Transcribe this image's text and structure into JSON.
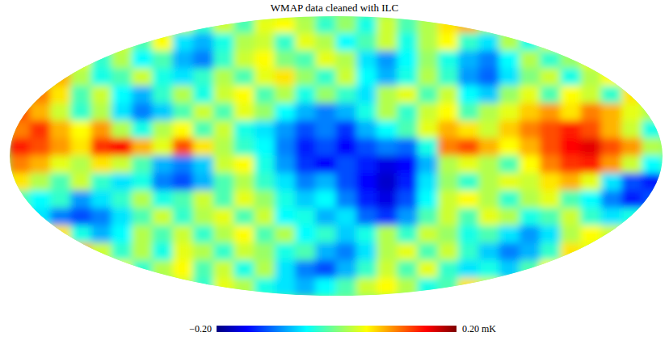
{
  "chart_data": {
    "type": "heatmap",
    "title": "WMAP data cleaned with ILC",
    "colorbar": {
      "range": [
        -0.2,
        0.2
      ],
      "ticks": [
        {
          "value": -0.2,
          "label": "−0.20"
        },
        {
          "value": 0.2,
          "label": "0.20 mK"
        }
      ]
    },
    "cells": [
      [
        null,
        null,
        null,
        null,
        null,
        null,
        null,
        null,
        0.02,
        -0.03,
        0.03,
        -0.02,
        0.04,
        0.05,
        0.02,
        -0.03,
        0.01,
        -0.04,
        0.03,
        -0.02,
        0.02,
        0.06,
        0.08,
        0.01,
        null,
        null,
        null,
        null,
        null,
        null,
        null,
        null
      ],
      [
        null,
        null,
        null,
        null,
        null,
        0.03,
        -0.02,
        0.05,
        -0.06,
        -0.08,
        -0.04,
        0.02,
        0.03,
        -0.03,
        0.04,
        0.02,
        -0.05,
        -0.02,
        0.03,
        -0.04,
        0.02,
        0.05,
        -0.03,
        -0.06,
        0.02,
        -0.04,
        0.03,
        null,
        null,
        null,
        null,
        null
      ],
      [
        null,
        null,
        null,
        0.04,
        -0.03,
        0.02,
        -0.05,
        -0.02,
        -0.08,
        -0.1,
        -0.03,
        0.03,
        0.05,
        0.0,
        -0.02,
        0.04,
        0.02,
        -0.06,
        -0.09,
        -0.05,
        0.01,
        -0.04,
        -0.08,
        -0.1,
        -0.05,
        0.02,
        -0.03,
        0.01,
        0.04,
        null,
        null,
        null
      ],
      [
        null,
        null,
        0.08,
        0.02,
        -0.04,
        -0.02,
        0.03,
        -0.04,
        -0.06,
        -0.03,
        0.02,
        -0.02,
        0.04,
        0.06,
        0.01,
        -0.03,
        0.03,
        -0.05,
        -0.08,
        -0.04,
        0.02,
        -0.03,
        -0.09,
        -0.11,
        -0.06,
        0.0,
        0.03,
        -0.04,
        0.02,
        0.05,
        null,
        null
      ],
      [
        null,
        0.1,
        0.06,
        -0.02,
        0.03,
        -0.05,
        -0.08,
        -0.03,
        0.02,
        -0.04,
        0.03,
        0.05,
        -0.02,
        0.02,
        -0.04,
        0.01,
        -0.03,
        -0.06,
        0.02,
        0.04,
        -0.02,
        0.03,
        -0.05,
        -0.07,
        0.01,
        0.04,
        -0.02,
        0.05,
        0.03,
        -0.03,
        0.06,
        null
      ],
      [
        0.12,
        0.08,
        0.03,
        -0.03,
        0.02,
        -0.06,
        -0.1,
        -0.07,
        -0.02,
        0.03,
        -0.02,
        0.04,
        0.01,
        -0.05,
        -0.08,
        -0.1,
        -0.08,
        -0.04,
        0.02,
        -0.03,
        0.03,
        0.05,
        -0.02,
        0.02,
        0.04,
        0.07,
        0.09,
        0.06,
        0.1,
        0.08,
        0.04,
        0.02
      ],
      [
        0.1,
        0.13,
        0.08,
        0.05,
        0.09,
        0.02,
        -0.04,
        0.02,
        0.05,
        -0.02,
        0.03,
        -0.04,
        -0.06,
        -0.09,
        -0.12,
        -0.1,
        -0.13,
        -0.08,
        -0.05,
        -0.02,
        0.04,
        0.08,
        0.06,
        0.03,
        0.07,
        0.1,
        0.12,
        0.14,
        0.12,
        0.08,
        0.03,
        -0.04
      ],
      [
        0.14,
        0.12,
        0.09,
        0.06,
        0.13,
        0.15,
        0.08,
        0.04,
        0.12,
        0.06,
        0.02,
        -0.03,
        -0.05,
        -0.1,
        -0.14,
        -0.12,
        -0.15,
        -0.12,
        -0.1,
        -0.11,
        -0.04,
        0.1,
        0.12,
        0.08,
        0.05,
        0.08,
        0.12,
        0.15,
        0.16,
        0.12,
        0.09,
        0.02
      ],
      [
        0.1,
        0.08,
        0.04,
        0.02,
        0.06,
        0.03,
        -0.02,
        -0.08,
        -0.1,
        -0.07,
        0.03,
        0.05,
        -0.04,
        -0.09,
        -0.13,
        -0.15,
        -0.12,
        -0.14,
        -0.16,
        -0.15,
        -0.08,
        0.02,
        0.04,
        0.02,
        -0.02,
        0.05,
        0.1,
        0.13,
        0.14,
        0.09,
        0.03,
        -0.05
      ],
      [
        0.06,
        0.02,
        -0.02,
        0.03,
        -0.03,
        -0.06,
        -0.04,
        -0.1,
        -0.12,
        -0.08,
        -0.02,
        0.02,
        -0.03,
        -0.06,
        -0.1,
        -0.08,
        -0.12,
        -0.15,
        -0.17,
        -0.14,
        -0.06,
        0.01,
        -0.03,
        0.02,
        0.04,
        0.03,
        0.06,
        0.08,
        0.04,
        -0.06,
        -0.12,
        -0.14
      ],
      [
        -0.02,
        -0.05,
        -0.03,
        -0.09,
        -0.06,
        -0.03,
        0.02,
        -0.04,
        -0.02,
        0.03,
        -0.02,
        0.04,
        0.01,
        -0.04,
        -0.07,
        -0.05,
        -0.1,
        -0.14,
        -0.16,
        -0.12,
        -0.05,
        0.03,
        0.05,
        0.02,
        -0.03,
        0.02,
        0.04,
        -0.02,
        -0.05,
        -0.1,
        -0.14,
        -0.12
      ],
      [
        null,
        -0.06,
        -0.1,
        -0.12,
        -0.1,
        -0.06,
        -0.02,
        0.03,
        -0.03,
        0.02,
        0.04,
        -0.02,
        0.03,
        -0.05,
        -0.04,
        -0.08,
        -0.06,
        -0.11,
        -0.13,
        -0.09,
        -0.02,
        0.03,
        -0.02,
        0.04,
        0.02,
        -0.04,
        -0.02,
        0.03,
        -0.03,
        -0.06,
        -0.04,
        null
      ],
      [
        null,
        null,
        0.06,
        -0.04,
        -0.08,
        -0.05,
        0.02,
        -0.02,
        0.03,
        -0.03,
        0.02,
        0.05,
        -0.02,
        0.02,
        -0.05,
        -0.03,
        -0.07,
        -0.04,
        0.02,
        -0.03,
        0.03,
        0.01,
        -0.04,
        -0.02,
        -0.06,
        -0.09,
        -0.06,
        0.02,
        0.05,
        0.03,
        null,
        null
      ],
      [
        null,
        null,
        null,
        0.08,
        0.03,
        -0.03,
        0.02,
        -0.04,
        0.04,
        0.02,
        -0.03,
        0.03,
        0.01,
        -0.04,
        -0.02,
        -0.08,
        -0.1,
        -0.06,
        0.02,
        0.04,
        -0.02,
        0.03,
        -0.03,
        -0.07,
        -0.1,
        -0.08,
        -0.03,
        0.06,
        0.04,
        null,
        null,
        null
      ],
      [
        null,
        null,
        null,
        null,
        null,
        0.04,
        -0.03,
        0.02,
        0.05,
        -0.02,
        0.03,
        -0.04,
        0.02,
        -0.06,
        -0.1,
        -0.12,
        -0.08,
        -0.03,
        0.03,
        -0.02,
        0.04,
        -0.03,
        -0.06,
        -0.04,
        -0.07,
        -0.02,
        0.05,
        null,
        null,
        null,
        null,
        null
      ],
      [
        null,
        null,
        null,
        null,
        null,
        null,
        null,
        null,
        0.03,
        -0.03,
        0.04,
        0.02,
        -0.04,
        -0.06,
        -0.08,
        -0.05,
        -0.02,
        0.03,
        0.05,
        0.02,
        -0.04,
        -0.02,
        0.06,
        0.03,
        null,
        null,
        null,
        null,
        null,
        null,
        null,
        null
      ]
    ]
  }
}
